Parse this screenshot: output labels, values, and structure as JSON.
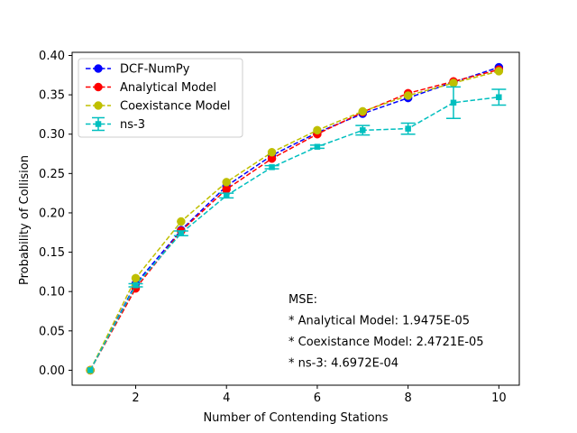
{
  "chart_data": {
    "type": "line",
    "title": "",
    "xlabel": "Number of Contending Stations",
    "ylabel": "Probability of Collision",
    "xlim": [
      0.6,
      10.45
    ],
    "ylim": [
      -0.019,
      0.404
    ],
    "x_ticks": [
      2,
      4,
      6,
      8,
      10
    ],
    "y_ticks": [
      0.0,
      0.05,
      0.1,
      0.15,
      0.2,
      0.25,
      0.3,
      0.35,
      0.4
    ],
    "x_tick_labels": [
      "2",
      "4",
      "6",
      "8",
      "10"
    ],
    "y_tick_labels": [
      "0.00",
      "0.05",
      "0.10",
      "0.15",
      "0.20",
      "0.25",
      "0.30",
      "0.35",
      "0.40"
    ],
    "grid": false,
    "legend_position": "top-left",
    "x": [
      1,
      2,
      3,
      4,
      5,
      6,
      7,
      8,
      9,
      10
    ],
    "series": [
      {
        "name": "DCF-NumPy",
        "color": "#0000ff",
        "marker": "circle",
        "values": [
          0.0,
          0.11,
          0.178,
          0.234,
          0.273,
          0.302,
          0.326,
          0.346,
          0.366,
          0.385
        ]
      },
      {
        "name": "Analytical Model",
        "color": "#ff0000",
        "marker": "circle",
        "values": [
          0.0,
          0.104,
          0.177,
          0.23,
          0.269,
          0.3,
          0.328,
          0.352,
          0.367,
          0.382
        ]
      },
      {
        "name": "Coexistance Model",
        "color": "#bfbf00",
        "marker": "circle",
        "values": [
          0.0,
          0.117,
          0.189,
          0.239,
          0.277,
          0.305,
          0.329,
          0.349,
          0.365,
          0.38
        ]
      },
      {
        "name": "ns-3",
        "color": "#00bfbf",
        "marker": "square",
        "values": [
          0.0,
          0.108,
          0.174,
          0.222,
          0.258,
          0.284,
          0.305,
          0.307,
          0.34,
          0.347
        ],
        "errors": [
          0.0,
          0.002,
          0.003,
          0.003,
          0.002,
          0.002,
          0.006,
          0.007,
          0.02,
          0.01
        ]
      }
    ],
    "annotations": [
      "MSE:",
      "* Analytical Model: 1.9475E-05",
      "* Coexistance Model: 2.4721E-05",
      "* ns-3: 4.6972E-04"
    ]
  }
}
